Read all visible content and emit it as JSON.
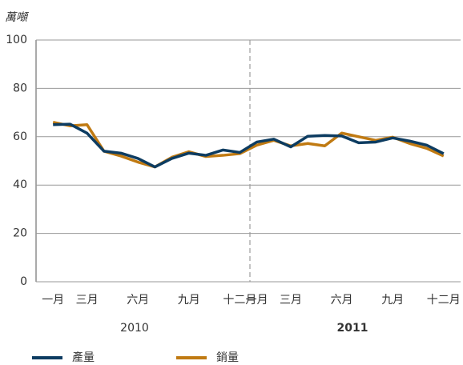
{
  "chart_data": {
    "type": "line",
    "y_label": "萬噸",
    "categories": [
      "一月",
      null,
      "三月",
      null,
      null,
      "六月",
      null,
      null,
      "九月",
      null,
      null,
      "十二月",
      "一月",
      null,
      "三月",
      null,
      null,
      "六月",
      null,
      null,
      "九月",
      null,
      null,
      "十二月"
    ],
    "year_labels": [
      "2010",
      "2011"
    ],
    "series": [
      {
        "name": "產量",
        "color": "#0d3c61",
        "values": [
          65,
          65.2,
          61.5,
          54,
          53.2,
          51,
          47.5,
          51,
          53.2,
          52.3,
          54.5,
          53.5,
          57.8,
          59,
          55.8,
          60.2,
          60.5,
          60.3,
          57.5,
          57.8,
          59.5,
          58.2,
          56.5,
          53
        ]
      },
      {
        "name": "銷量",
        "color": "#c07a12",
        "values": [
          66,
          64.5,
          65,
          54,
          52,
          49.5,
          47.5,
          51.5,
          53.8,
          51.8,
          52.3,
          53,
          56.5,
          58.5,
          56.2,
          57.2,
          56.2,
          61.5,
          60,
          58.5,
          59.8,
          57.2,
          55.2,
          52
        ]
      }
    ],
    "ylim": [
      0,
      100
    ],
    "yticks": [
      0,
      20,
      40,
      60,
      80,
      100
    ],
    "grid": true
  }
}
